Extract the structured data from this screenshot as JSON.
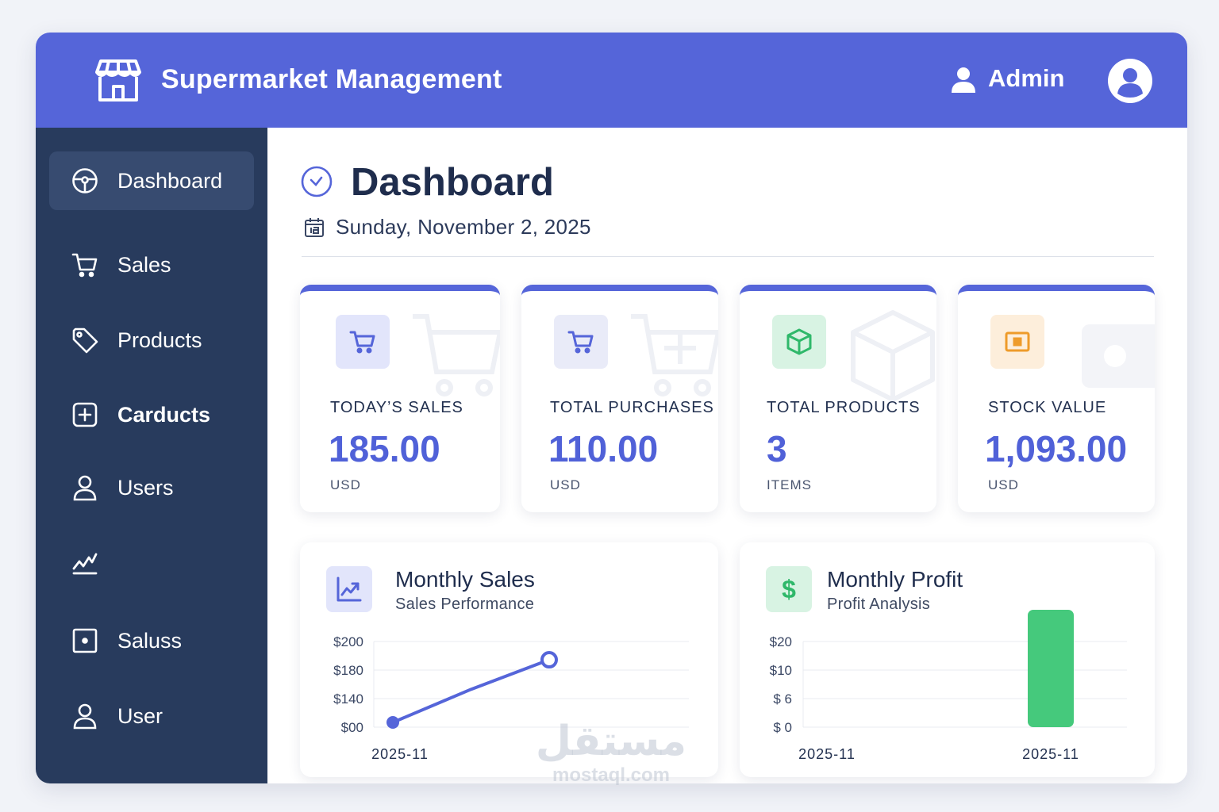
{
  "header": {
    "app_title": "Supermarket Management",
    "user_name": "Admin",
    "icons": {
      "brand": "store-icon",
      "user": "user-icon",
      "avatar": "avatar-icon"
    }
  },
  "sidebar": {
    "items": [
      {
        "label": "Dashboard",
        "icon": "dashboard-gauge-icon",
        "active": true
      },
      {
        "label": "Sales",
        "icon": "cart-icon",
        "active": false
      },
      {
        "label": "Products",
        "icon": "tag-icon",
        "active": false
      },
      {
        "label": "Carducts",
        "icon": "plus-square-icon",
        "active": false
      },
      {
        "label": "Users",
        "icon": "user-icon",
        "active": false
      },
      {
        "label": "",
        "icon": "trend-chart-icon",
        "active": false
      },
      {
        "label": "Saluss",
        "icon": "square-dot-icon",
        "active": false
      },
      {
        "label": "User",
        "icon": "user-icon",
        "active": false
      }
    ]
  },
  "page": {
    "title": "Dashboard",
    "date": "Sunday, November 2, 2025"
  },
  "stats": [
    {
      "label": "TODAY’S SALES",
      "value": "185.00",
      "unit": "USD",
      "icon": "cart-icon",
      "icon_bg": "#e2e5fb",
      "icon_color": "#5565d9"
    },
    {
      "label": "TOTAL PURCHASES",
      "value": "110.00",
      "unit": "USD",
      "icon": "cart-icon",
      "icon_bg": "#e9ebf8",
      "icon_color": "#5565d9"
    },
    {
      "label": "TOTAL PRODUCTS",
      "value": "3",
      "unit": "ITEMS",
      "icon": "box-icon",
      "icon_bg": "#d8f3e3",
      "icon_color": "#2fb86a"
    },
    {
      "label": "STOCK VALUE",
      "value": "1,093.00",
      "unit": "USD",
      "icon": "cash-icon",
      "icon_bg": "#fdeedb",
      "icon_color": "#ee9b2a"
    }
  ],
  "charts": {
    "monthly_sales": {
      "title": "Monthly Sales",
      "subtitle": "Sales Performance",
      "icon": "trend-up-icon"
    },
    "monthly_profit": {
      "title": "Monthly Profit",
      "subtitle": "Profit Analysis",
      "icon": "dollar-icon"
    }
  },
  "chart_data": [
    {
      "type": "line",
      "title": "Monthly Sales",
      "subtitle": "Sales Performance",
      "y_ticks": [
        "$200",
        "$180",
        "$140",
        "$00"
      ],
      "x_tick_labels": [
        "2025-11"
      ],
      "series": [
        {
          "values": [
            0,
            95,
            180
          ]
        }
      ],
      "color": "#5565d9"
    },
    {
      "type": "bar",
      "title": "Monthly Profit",
      "subtitle": "Profit Analysis",
      "y_ticks": [
        "$20",
        "$10",
        "$ 6",
        "$ 0"
      ],
      "x_tick_labels": [
        "2025-11",
        "2025-11"
      ],
      "values": [
        0,
        20
      ],
      "color": "#45c97c"
    }
  ],
  "watermark": {
    "arabic": "مستقل",
    "latin": "mostaql.com"
  }
}
